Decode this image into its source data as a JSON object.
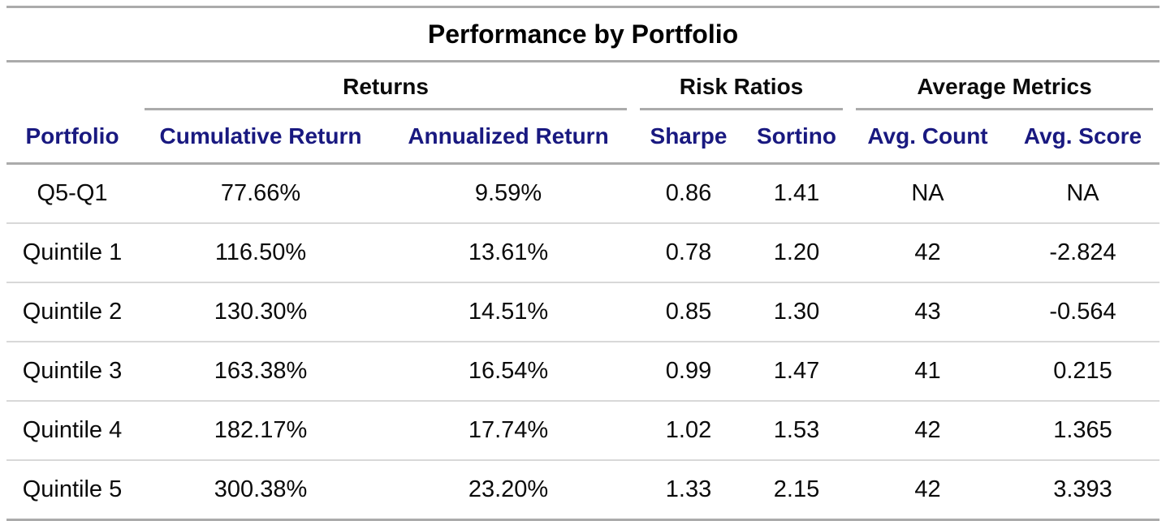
{
  "colors": {
    "header_text": "#191980",
    "title_text": "#000000",
    "body_text": "#0B0B0B",
    "heavy_rule": "#ABABAB",
    "light_rule": "#D8D8D8",
    "background": "#FFFFFF"
  },
  "chart_data": {
    "type": "table",
    "title": "Performance by Portfolio",
    "column_groups": [
      {
        "label": "Returns",
        "columns": [
          "Cumulative Return",
          "Annualized Return"
        ]
      },
      {
        "label": "Risk Ratios",
        "columns": [
          "Sharpe",
          "Sortino"
        ]
      },
      {
        "label": "Average Metrics",
        "columns": [
          "Avg. Count",
          "Avg. Score"
        ]
      }
    ],
    "columns": [
      "Portfolio",
      "Cumulative Return",
      "Annualized Return",
      "Sharpe",
      "Sortino",
      "Avg. Count",
      "Avg. Score"
    ],
    "rows": [
      [
        "Q5-Q1",
        "77.66%",
        "9.59%",
        "0.86",
        "1.41",
        "NA",
        "NA"
      ],
      [
        "Quintile 1",
        "116.50%",
        "13.61%",
        "0.78",
        "1.20",
        "42",
        "-2.824"
      ],
      [
        "Quintile 2",
        "130.30%",
        "14.51%",
        "0.85",
        "1.30",
        "43",
        "-0.564"
      ],
      [
        "Quintile 3",
        "163.38%",
        "16.54%",
        "0.99",
        "1.47",
        "41",
        "0.215"
      ],
      [
        "Quintile 4",
        "182.17%",
        "17.74%",
        "1.02",
        "1.53",
        "42",
        "1.365"
      ],
      [
        "Quintile 5",
        "300.38%",
        "23.20%",
        "1.33",
        "2.15",
        "42",
        "3.393"
      ]
    ]
  }
}
